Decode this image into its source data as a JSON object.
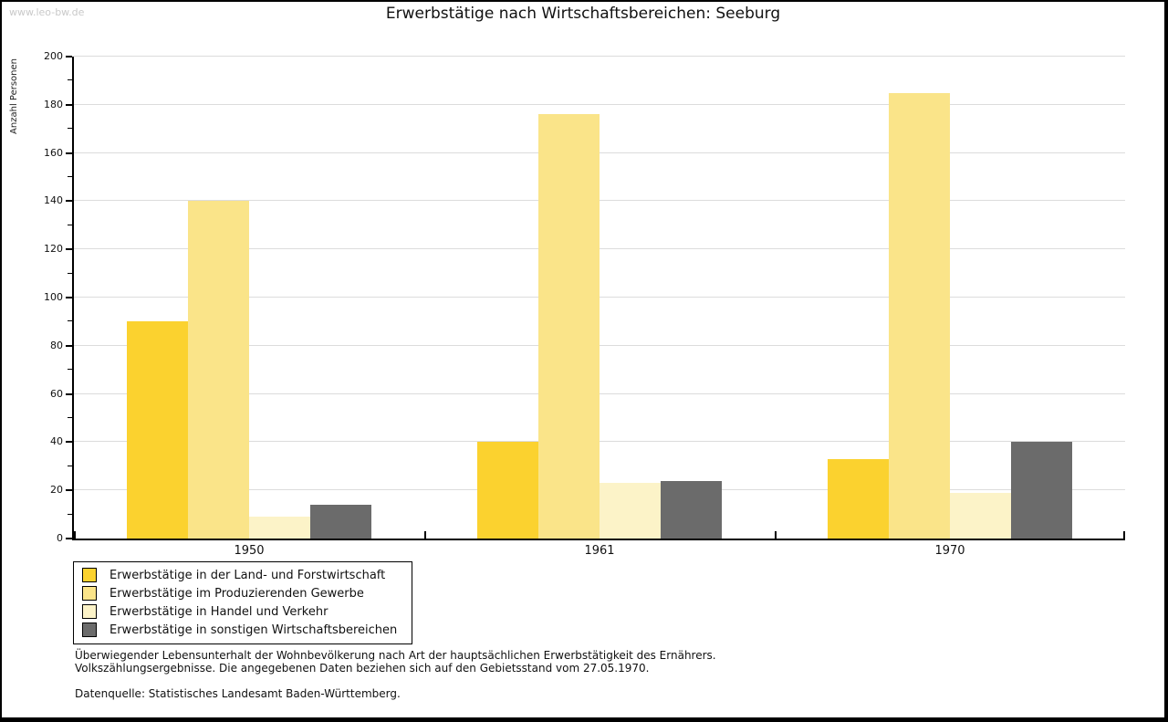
{
  "page": {
    "watermark": "www.leo-bw.de",
    "title": "Erwerbstätige nach Wirtschaftsbereichen: Seeburg"
  },
  "chart_data": {
    "type": "bar",
    "title": "Erwerbstätige nach Wirtschaftsbereichen: Seeburg",
    "ylabel": "Anzahl Personen",
    "xlabel": "",
    "categories": [
      "1950",
      "1961",
      "1970"
    ],
    "series": [
      {
        "name": "Erwerbstätige in der Land- und Forstwirtschaft",
        "color": "#FBD22F",
        "values": [
          90,
          40,
          33
        ]
      },
      {
        "name": "Erwerbstätige im Produzierenden Gewerbe",
        "color": "#FAE489",
        "values": [
          140,
          176,
          185
        ]
      },
      {
        "name": "Erwerbstätige in Handel und Verkehr",
        "color": "#FCF3C8",
        "values": [
          9,
          23,
          19
        ]
      },
      {
        "name": "Erwerbstätige in sonstigen Wirtschaftsbereichen",
        "color": "#6B6B6B",
        "values": [
          14,
          24,
          40
        ]
      }
    ],
    "ylim": [
      0,
      200
    ],
    "ytick_step": 20,
    "minor_tick_step": 10,
    "grid": true,
    "legend_position": "bottom-left",
    "axis_color": "#000000",
    "gridline_color": "#dcdcdc"
  },
  "footnotes": {
    "line1": "Überwiegender Lebensunterhalt der Wohnbevölkerung nach Art der hauptsächlichen Erwerbstätigkeit des Ernährers.",
    "line2": "Volkszählungsergebnisse. Die angegebenen Daten beziehen sich auf den Gebietsstand vom 27.05.1970.",
    "source": "Datenquelle: Statistisches Landesamt Baden-Württemberg."
  }
}
